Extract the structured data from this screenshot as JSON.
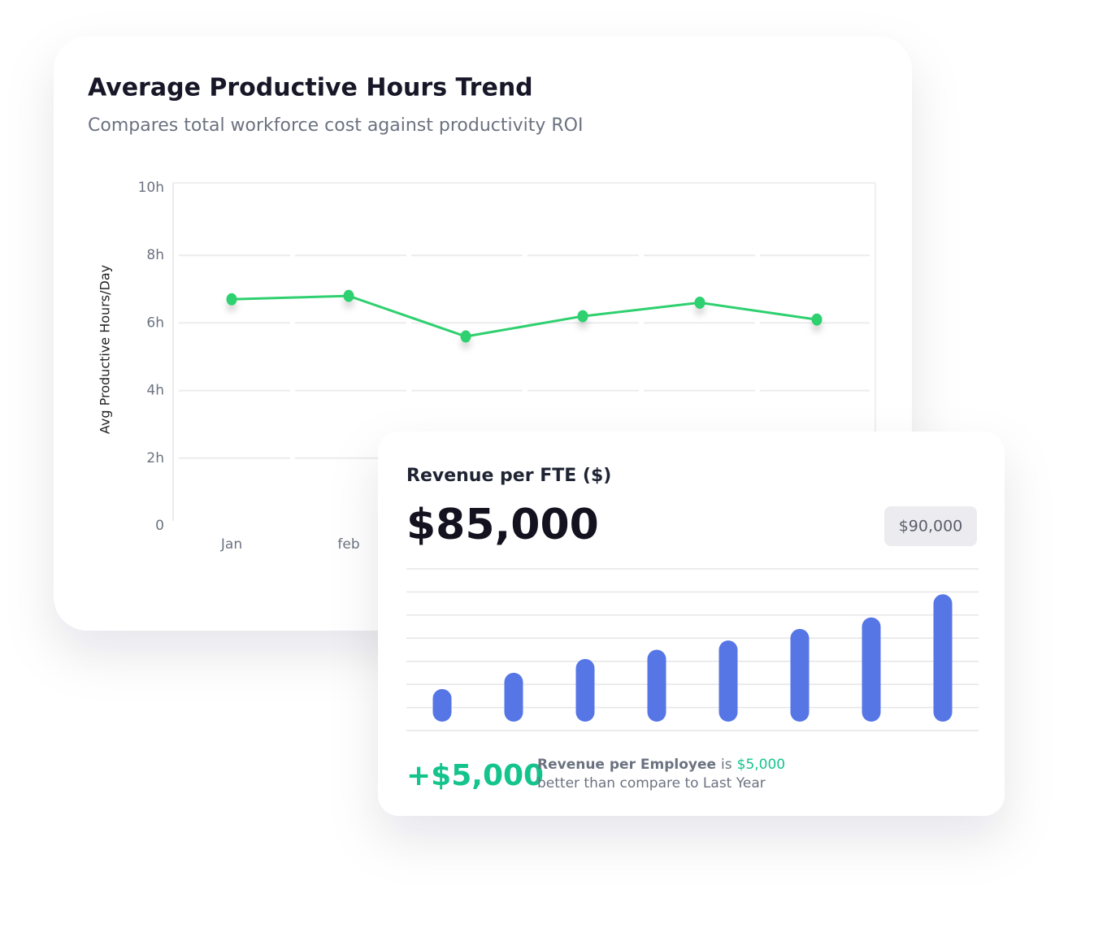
{
  "chart_data": [
    {
      "type": "line",
      "title": "Average Productive Hours Trend",
      "subtitle": "Compares total workforce cost against productivity ROI",
      "y_label": "Avg Productive Hours/Day",
      "categories": [
        "Jan",
        "feb",
        null,
        null,
        null,
        null
      ],
      "values": [
        6.7,
        6.8,
        5.6,
        6.2,
        6.6,
        6.1
      ],
      "color": "#2fd06f",
      "ylim": [
        0,
        10
      ],
      "yticks": [
        0,
        {
          "value": 2,
          "label": "2h"
        },
        {
          "value": 4,
          "label": "4h"
        },
        {
          "value": 6,
          "label": "6h"
        },
        {
          "value": 8,
          "label": "8h"
        },
        {
          "value": 10,
          "label": "10h"
        }
      ],
      "grid": true
    },
    {
      "type": "bar",
      "title": "Revenue per FTE ($)",
      "headline": "$85,000",
      "badge": "$90,000",
      "change": "+$5,000",
      "note": {
        "subject": "Revenue per Employee",
        "verb": "is",
        "amount": "$5,000",
        "rest": "better than compare to Last Year"
      },
      "values": [
        1.8,
        2.5,
        3.1,
        3.5,
        3.9,
        4.4,
        4.9,
        5.9
      ],
      "color": "#5676e6",
      "ylim": [
        0,
        7
      ],
      "grid": true
    }
  ]
}
